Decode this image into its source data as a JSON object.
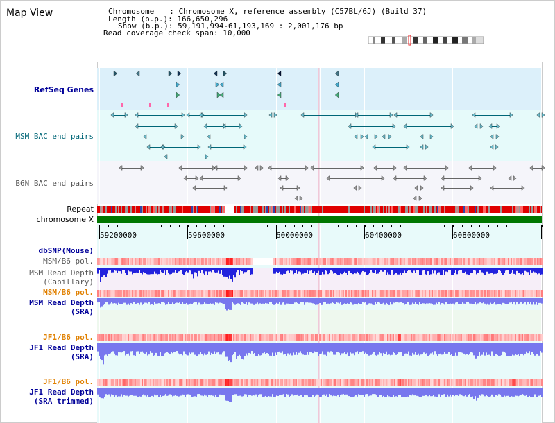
{
  "title": "Map View",
  "header": {
    "chromosome_key": "Chromosome",
    "chromosome_val": ": Chromosome X, reference assembly (C57BL/6J) (Build 37)",
    "length_key": "Length (b.p.)",
    "length_val": ": 166,650,296",
    "show_key": "Show (b.p.)",
    "show_val": ": 59,191,994-61,193,169 : 2,001,176 bp",
    "coverage_key": "Read coverage check span",
    "coverage_val": ": 10,000"
  },
  "tracks": {
    "refseq": "RefSeq Genes",
    "msm_bac": "MSM BAC end pairs",
    "b6n_bac": "B6N BAC end pairs",
    "repeat": "Repeat",
    "chromosome": "chromosome X",
    "dbsnp": "dbSNP(Mouse)",
    "msm_b6_pol_1": "MSM/B6 pol.",
    "msm_read_depth_cap_1": "MSM Read Depth",
    "msm_read_depth_cap_2": "(Capillary)",
    "msm_b6_pol_2": "MSM/B6 pol.",
    "msm_read_depth_sra_1": "MSM Read Depth",
    "msm_read_depth_sra_2": "(SRA)",
    "jf1_b6_pol_1": "JF1/B6 pol.",
    "jf1_read_depth_sra_1": "JF1 Read Depth",
    "jf1_read_depth_sra_2": "(SRA)",
    "jf1_b6_pol_2": "JF1/B6 pol.",
    "jf1_read_depth_trim_1": "JF1 Read Depth",
    "jf1_read_depth_trim_2": "(SRA trimmed)"
  },
  "axis": {
    "ticks": [
      "59200000",
      "59600000",
      "60000000",
      "60400000",
      "60800000"
    ]
  },
  "colors": {
    "refseq_bg": "#dcf0fa",
    "msm_bac_bg": "#e6fafa",
    "b6n_bac_bg": "#f5f5fa",
    "lower_bg": "#e8fafa",
    "label_navy": "#000099",
    "label_teal": "#006677",
    "label_gray": "#555555",
    "label_orange": "#e08000",
    "chromosome_green": "#007700",
    "repeat_red": "#e00000",
    "depth_blue": "#2222dd",
    "depth_light": "#7777ee",
    "pol_pink": "#f4b8b8"
  }
}
